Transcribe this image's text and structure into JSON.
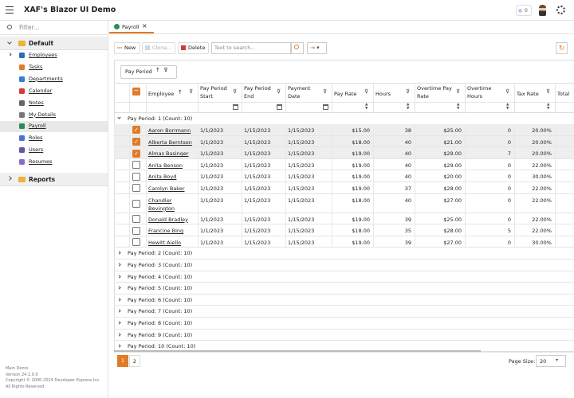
{
  "header": {
    "title": "XAF's Blazor UI Demo",
    "badge": "0"
  },
  "sidebar": {
    "filter_placeholder": "Filter...",
    "groups": [
      {
        "label": "Default",
        "items": [
          "Employees",
          "Tasks",
          "Departments",
          "Calendar",
          "Notes",
          "My Details",
          "Payroll",
          "Roles",
          "Users",
          "Resumes"
        ],
        "expanded": true,
        "selected_item": 6
      },
      {
        "label": "Reports",
        "items": [],
        "expanded": false
      }
    ],
    "footer": [
      "Main Demo",
      "Version 24.1.0.0",
      "Copyright © 2000-2024 Developer Express Inc.",
      "All Rights Reserved"
    ]
  },
  "tab": {
    "label": "Payroll"
  },
  "toolbar": {
    "new": "New",
    "clone": "Clone...",
    "delete": "Delete",
    "search_placeholder": "Text to search..."
  },
  "group_panel": {
    "label": "Pay Period"
  },
  "table": {
    "columns": [
      "Employee",
      "Pay Period Start",
      "Pay Period End",
      "Payment Date",
      "Pay Rate",
      "Hours",
      "Overtime Pay Rate",
      "Overtime Hours",
      "Tax Rate",
      "Total"
    ],
    "group_rows": [
      "Pay Period: 1 (Count: 10)",
      "Pay Period: 2 (Count: 10)",
      "Pay Period: 3 (Count: 10)",
      "Pay Period: 4 (Count: 10)",
      "Pay Period: 5 (Count: 10)",
      "Pay Period: 6 (Count: 10)",
      "Pay Period: 7 (Count: 10)",
      "Pay Period: 8 (Count: 10)",
      "Pay Period: 9 (Count: 10)",
      "Pay Period: 10 (Count: 10)"
    ],
    "rows": [
      {
        "employee": "Aaron Borrmann",
        "start": "1/1/2023",
        "end": "1/15/2023",
        "payment": "1/15/2023",
        "pay_rate": "$15.00",
        "hours": 38,
        "ot_rate": "$25.00",
        "ot_hours": 0,
        "tax_rate": "20.00%",
        "selected": true
      },
      {
        "employee": "Alberta Berntsen",
        "start": "1/1/2023",
        "end": "1/15/2023",
        "payment": "1/15/2023",
        "pay_rate": "$18.00",
        "hours": 40,
        "ot_rate": "$21.00",
        "ot_hours": 0,
        "tax_rate": "20.00%",
        "selected": true
      },
      {
        "employee": "Almas Basinger",
        "start": "1/1/2023",
        "end": "1/15/2023",
        "payment": "1/15/2023",
        "pay_rate": "$19.00",
        "hours": 40,
        "ot_rate": "$29.00",
        "ot_hours": 7,
        "tax_rate": "20.00%",
        "selected": true
      },
      {
        "employee": "Anita Benson",
        "start": "1/1/2023",
        "end": "1/15/2023",
        "payment": "1/15/2023",
        "pay_rate": "$19.00",
        "hours": 40,
        "ot_rate": "$29.00",
        "ot_hours": 0,
        "tax_rate": "22.00%",
        "selected": false
      },
      {
        "employee": "Anita Boyd",
        "start": "1/1/2023",
        "end": "1/15/2023",
        "payment": "1/15/2023",
        "pay_rate": "$19.00",
        "hours": 40,
        "ot_rate": "$20.00",
        "ot_hours": 0,
        "tax_rate": "30.00%",
        "selected": false
      },
      {
        "employee": "Carolyn Baker",
        "start": "1/1/2023",
        "end": "1/15/2023",
        "payment": "1/15/2023",
        "pay_rate": "$19.00",
        "hours": 37,
        "ot_rate": "$28.00",
        "ot_hours": 0,
        "tax_rate": "22.00%",
        "selected": false
      },
      {
        "employee": "Chandler Bevington",
        "start": "1/1/2023",
        "end": "1/15/2023",
        "payment": "1/15/2023",
        "pay_rate": "$18.00",
        "hours": 40,
        "ot_rate": "$27.00",
        "ot_hours": 0,
        "tax_rate": "22.00%",
        "selected": false
      },
      {
        "employee": "Donald Bradley",
        "start": "1/1/2023",
        "end": "1/15/2023",
        "payment": "1/15/2023",
        "pay_rate": "$19.00",
        "hours": 39,
        "ot_rate": "$25.00",
        "ot_hours": 0,
        "tax_rate": "22.00%",
        "selected": false
      },
      {
        "employee": "Francine Bing",
        "start": "1/1/2023",
        "end": "1/15/2023",
        "payment": "1/15/2023",
        "pay_rate": "$18.00",
        "hours": 35,
        "ot_rate": "$28.00",
        "ot_hours": 5,
        "tax_rate": "22.00%",
        "selected": false
      },
      {
        "employee": "Hewitt Aiello",
        "start": "1/1/2023",
        "end": "1/15/2023",
        "payment": "1/15/2023",
        "pay_rate": "$19.00",
        "hours": 39,
        "ot_rate": "$27.00",
        "ot_hours": 0,
        "tax_rate": "30.00%",
        "selected": false
      }
    ]
  },
  "pager": {
    "pages": [
      "1",
      "2"
    ],
    "current": 0,
    "page_size_label": "Page Size:",
    "page_size": "20"
  }
}
